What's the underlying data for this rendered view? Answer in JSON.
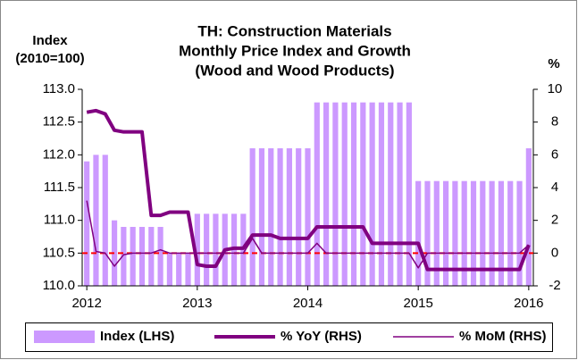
{
  "chart_data": {
    "type": "bar-line",
    "title": [
      "TH: Construction Materials",
      "Monthly Price Index and Growth",
      "(Wood and Wood Products)"
    ],
    "y_label": [
      "Index",
      "(2010=100)"
    ],
    "y2_label": "%",
    "categories": [
      "2012",
      null,
      null,
      null,
      null,
      null,
      null,
      null,
      null,
      null,
      null,
      null,
      "2013",
      null,
      null,
      null,
      null,
      null,
      null,
      null,
      null,
      null,
      null,
      null,
      "2014",
      null,
      null,
      null,
      null,
      null,
      null,
      null,
      null,
      null,
      null,
      null,
      "2015",
      null,
      null,
      null,
      null,
      null,
      null,
      null,
      null,
      null,
      null,
      null,
      "2016"
    ],
    "series": [
      {
        "name": "Index (LHS)",
        "kind": "bar",
        "color": "#cc99ff",
        "values": [
          111.9,
          112.0,
          112.0,
          111.0,
          110.9,
          110.9,
          110.9,
          110.9,
          110.9,
          110.5,
          110.5,
          110.5,
          111.1,
          111.1,
          111.1,
          111.1,
          111.1,
          111.1,
          112.1,
          112.1,
          112.1,
          112.1,
          112.1,
          112.1,
          112.1,
          112.8,
          112.8,
          112.8,
          112.8,
          112.8,
          112.8,
          112.8,
          112.8,
          112.8,
          112.8,
          112.8,
          111.6,
          111.6,
          111.6,
          111.6,
          111.6,
          111.6,
          111.6,
          111.6,
          111.6,
          111.6,
          111.6,
          111.6,
          112.1
        ]
      },
      {
        "name": "% YoY (RHS)",
        "kind": "line",
        "axis": "y2",
        "color": "#800080",
        "width": 4,
        "values": [
          8.6,
          8.7,
          8.5,
          7.5,
          7.4,
          7.4,
          7.4,
          2.3,
          2.3,
          2.5,
          2.5,
          2.5,
          -0.7,
          -0.8,
          -0.8,
          0.2,
          0.3,
          0.3,
          1.1,
          1.1,
          1.1,
          0.9,
          0.9,
          0.9,
          0.9,
          1.6,
          1.6,
          1.6,
          1.6,
          1.6,
          1.6,
          0.6,
          0.6,
          0.6,
          0.6,
          0.6,
          0.6,
          -1.0,
          -1.0,
          -1.0,
          -1.0,
          -1.0,
          -1.0,
          -1.0,
          -1.0,
          -1.0,
          -1.0,
          -1.0,
          0.5
        ]
      },
      {
        "name": "% MoM (RHS)",
        "kind": "line",
        "axis": "y2",
        "color": "#800080",
        "width": 1.5,
        "values": [
          3.2,
          0.1,
          0,
          -0.8,
          -0.1,
          0,
          0,
          0,
          0.2,
          0,
          0,
          0,
          0,
          0,
          0,
          0,
          0,
          0,
          0.9,
          0,
          0,
          0,
          0,
          0,
          0,
          0.6,
          0,
          0,
          0,
          0,
          0,
          0,
          0,
          0,
          0,
          0,
          -0.9,
          0,
          0,
          0,
          0,
          0,
          0,
          0,
          0,
          0,
          0,
          0,
          0.5
        ]
      }
    ],
    "hline": {
      "value": 0,
      "axis": "y2",
      "color": "#ff0000"
    },
    "ylim": [
      110,
      113
    ],
    "yticks": [
      {
        "value": 110,
        "label": "110.0"
      },
      {
        "value": 110.5,
        "label": "110.5"
      },
      {
        "value": 111,
        "label": "111.0"
      },
      {
        "value": 111.5,
        "label": "111.5"
      },
      {
        "value": 112,
        "label": "112.0"
      },
      {
        "value": 112.5,
        "label": "112.5"
      },
      {
        "value": 113,
        "label": "113.0"
      }
    ],
    "y2lim": [
      -2,
      10
    ],
    "y2ticks": [
      -2,
      0,
      2,
      4,
      6,
      8,
      10
    ],
    "legend": "bottom"
  }
}
